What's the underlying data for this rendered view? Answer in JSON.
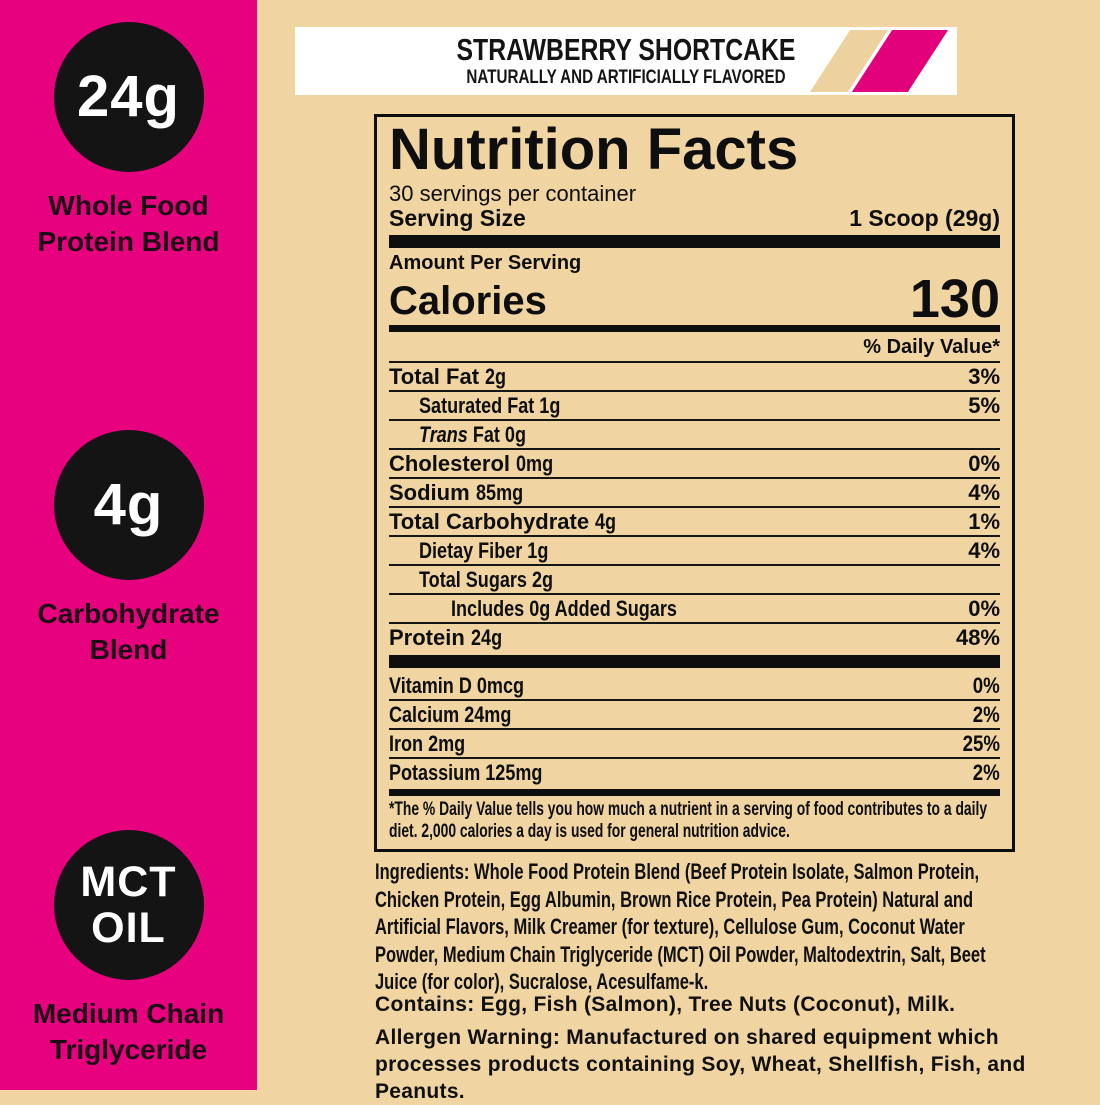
{
  "colors": {
    "banner_pink": "#E8017F",
    "background_tan": "#F0D5A2",
    "badge_black": "#141414",
    "stripe_tan": "#EDD2A0",
    "stripe_pink": "#E2017B"
  },
  "sidebar": {
    "promos": [
      {
        "circle_lines": [
          "24g"
        ],
        "label_lines": [
          "Whole Food",
          "Protein Blend"
        ]
      },
      {
        "circle_lines": [
          "4g"
        ],
        "label_lines": [
          "Carbohydrate",
          "Blend"
        ]
      },
      {
        "circle_lines": [
          "MCT",
          "OIL"
        ],
        "label_lines": [
          "Medium Chain",
          "Triglyceride"
        ]
      }
    ]
  },
  "flavor": {
    "title": "STRAWBERRY SHORTCAKE",
    "subtitle": "NATURALLY AND ARTIFICIALLY FLAVORED"
  },
  "nutrition": {
    "title": "Nutrition Facts",
    "servings_per_container": "30 servings per container",
    "serving_size_label": "Serving Size",
    "serving_size_value": "1 Scoop (29g)",
    "amount_per_serving": "Amount Per Serving",
    "calories_label": "Calories",
    "calories_value": "130",
    "daily_value_header": "% Daily Value*",
    "rows": [
      {
        "name": "Total Fat",
        "amount": "2g",
        "dv": "3%"
      },
      {
        "name": "Saturated Fat",
        "amount": "1g",
        "dv": "5%"
      },
      {
        "name_italic": "Trans",
        "name": "Fat",
        "amount": "0g",
        "dv": ""
      },
      {
        "name": "Cholesterol",
        "amount": "0mg",
        "dv": "0%"
      },
      {
        "name": "Sodium",
        "amount": "85mg",
        "dv": "4%"
      },
      {
        "name": "Total Carbohydrate",
        "amount": "4g",
        "dv": "1%"
      },
      {
        "name": "Dietay Fiber",
        "amount": "1g",
        "dv": "4%"
      },
      {
        "name": "Total Sugars",
        "amount": "2g",
        "dv": ""
      },
      {
        "name": "Includes 0g Added Sugars",
        "amount": "",
        "dv": "0%"
      },
      {
        "name": "Protein",
        "amount": "24g",
        "dv": "48%"
      }
    ],
    "vitamins": [
      {
        "name": "Vitamin D",
        "amount": "0mcg",
        "dv": "0%"
      },
      {
        "name": "Calcium",
        "amount": "24mg",
        "dv": "2%"
      },
      {
        "name": "Iron",
        "amount": "2mg",
        "dv": "25%"
      },
      {
        "name": "Potassium",
        "amount": "125mg",
        "dv": "2%"
      }
    ],
    "footnote": "*The % Daily Value tells you how much a nutrient in a serving of food contributes to a daily diet. 2,000 calories a day is used for general nutrition advice."
  },
  "ingredients": "Ingredients: Whole Food Protein Blend (Beef Protein Isolate, Salmon Protein, Chicken Protein, Egg Albumin, Brown Rice Protein, Pea Protein) Natural and Artificial Flavors, Milk Creamer (for texture), Cellulose Gum, Coconut Water Powder, Medium Chain Triglyceride (MCT) Oil Powder, Maltodextrin, Salt, Beet Juice (for color), Sucralose, Acesulfame-k.",
  "contains": "Contains: Egg, Fish (Salmon), Tree Nuts (Coconut), Milk.",
  "allergen": "Allergen Warning: Manufactured on shared equipment which processes products containing Soy, Wheat, Shellfish, Fish, and Peanuts."
}
